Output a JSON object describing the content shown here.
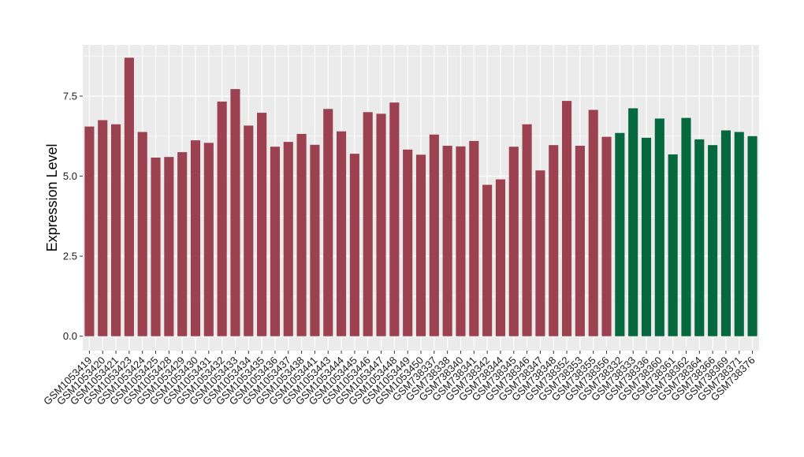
{
  "chart_data": {
    "type": "bar",
    "title": "",
    "xlabel": "",
    "ylabel": "Expression Level",
    "ylim": [
      -0.45,
      9.1
    ],
    "yticks": [
      0.0,
      2.5,
      5.0,
      7.5
    ],
    "ytick_labels": [
      "0.0",
      "2.5",
      "5.0",
      "7.5"
    ],
    "grid": true,
    "legend": "none",
    "categories": [
      "GSM1053419",
      "GSM1053420",
      "GSM1053421",
      "GSM1053423",
      "GSM1053424",
      "GSM1053425",
      "GSM1053428",
      "GSM1053429",
      "GSM1053430",
      "GSM1053431",
      "GSM1053432",
      "GSM1053433",
      "GSM1053434",
      "GSM1053435",
      "GSM1053436",
      "GSM1053437",
      "GSM1053438",
      "GSM1053441",
      "GSM1053443",
      "GSM1053444",
      "GSM1053445",
      "GSM1053446",
      "GSM1053447",
      "GSM1053448",
      "GSM1053449",
      "GSM1053450",
      "GSM738337",
      "GSM738338",
      "GSM738340",
      "GSM738341",
      "GSM738342",
      "GSM738344",
      "GSM738345",
      "GSM738346",
      "GSM738347",
      "GSM738348",
      "GSM738352",
      "GSM738353",
      "GSM738355",
      "GSM738356",
      "GSM738332",
      "GSM738333",
      "GSM738336",
      "GSM738360",
      "GSM738361",
      "GSM738362",
      "GSM738364",
      "GSM738366",
      "GSM738369",
      "GSM738371",
      "GSM738376"
    ],
    "values": [
      6.55,
      6.75,
      6.62,
      8.7,
      6.38,
      5.58,
      5.6,
      5.75,
      6.12,
      6.04,
      7.33,
      7.72,
      6.58,
      6.98,
      5.92,
      6.07,
      6.32,
      5.98,
      7.1,
      6.4,
      5.7,
      7.0,
      6.95,
      7.3,
      5.83,
      5.67,
      6.3,
      5.95,
      5.93,
      6.1,
      4.73,
      4.9,
      5.92,
      6.62,
      5.18,
      5.97,
      7.35,
      5.95,
      7.07,
      6.23,
      6.35,
      7.12,
      6.2,
      6.8,
      5.68,
      6.82,
      6.15,
      5.97,
      6.43,
      6.38,
      6.25
    ],
    "group_sizes": [
      40,
      11
    ],
    "colors": {
      "group_1": "#9b4150",
      "group_2": "#05683f",
      "panel_background": "#ebebeb",
      "grid_line": "#ffffff",
      "tick_mark": "#333333"
    }
  }
}
